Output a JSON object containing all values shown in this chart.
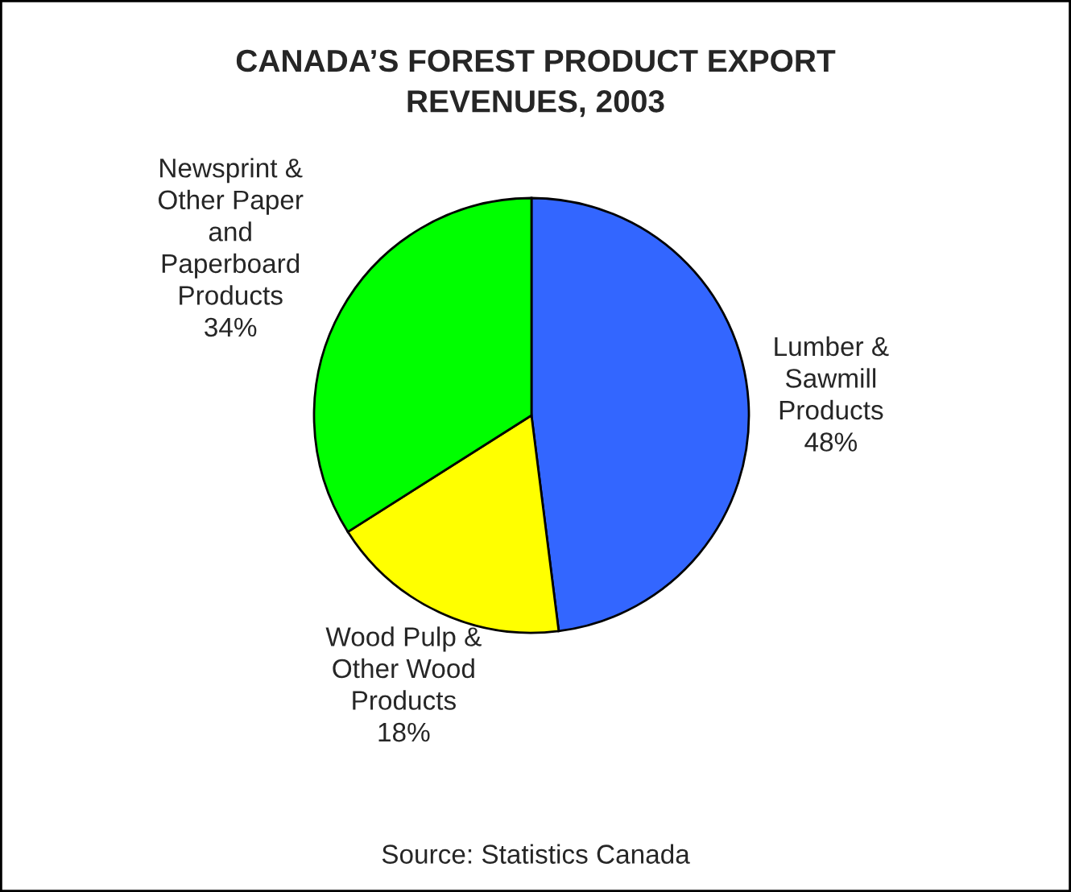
{
  "chart_data": {
    "type": "pie",
    "title": "CANADA’S FOREST PRODUCT EXPORT\nREVENUES, 2003",
    "categories": [
      "Lumber &\nSawmill\nProducts",
      "Wood Pulp &\nOther Wood\nProducts",
      "Newsprint &\nOther Paper\nand\nPaperboard\nProducts"
    ],
    "values": [
      48,
      18,
      34
    ],
    "colors": [
      "#3366ff",
      "#ffff00",
      "#00ff00"
    ],
    "value_labels": [
      "48%",
      "18%",
      "34%"
    ],
    "annotations": [
      "Source: Statistics Canada"
    ]
  }
}
